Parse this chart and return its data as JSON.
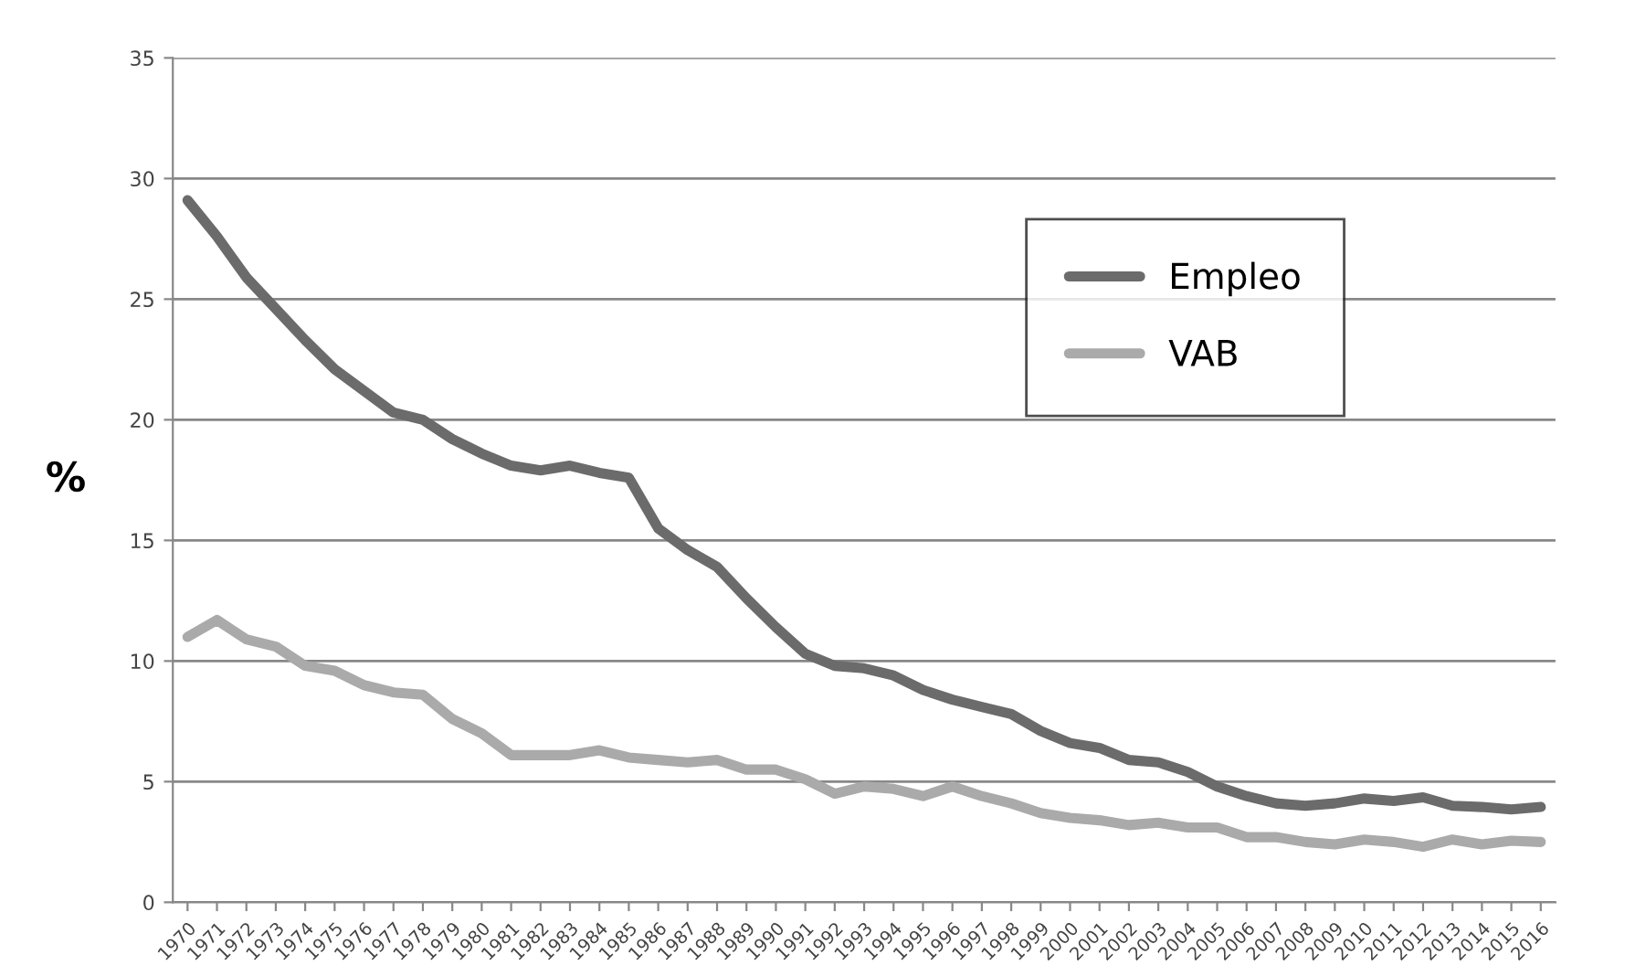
{
  "chart_data": {
    "type": "line",
    "ylabel": "%",
    "categories": [
      "1970",
      "1971",
      "1972",
      "1973",
      "1974",
      "1975",
      "1976",
      "1977",
      "1978",
      "1979",
      "1980",
      "1981",
      "1982",
      "1983",
      "1984",
      "1985",
      "1986",
      "1987",
      "1988",
      "1989",
      "1990",
      "1991",
      "1992",
      "1993",
      "1994",
      "1995",
      "1996",
      "1997",
      "1998",
      "1999",
      "2000",
      "2001",
      "2002",
      "2003",
      "2004",
      "2005",
      "2006",
      "2007",
      "2008",
      "2009",
      "2010",
      "2011",
      "2012",
      "2013",
      "2014",
      "2015",
      "2016"
    ],
    "series": [
      {
        "name": "Empleo",
        "color": "#6b6b6b",
        "values": [
          29.1,
          27.6,
          25.9,
          24.6,
          23.3,
          22.1,
          21.2,
          20.3,
          20.0,
          19.2,
          18.6,
          18.1,
          17.9,
          18.1,
          17.8,
          17.6,
          15.5,
          14.6,
          13.9,
          12.6,
          11.4,
          10.3,
          9.8,
          9.7,
          9.4,
          8.8,
          8.4,
          8.1,
          7.8,
          7.1,
          6.6,
          6.4,
          5.9,
          5.8,
          5.4,
          4.8,
          4.4,
          4.1,
          4.0,
          4.1,
          4.3,
          4.2,
          4.35,
          4.0,
          3.95,
          3.85,
          3.95
        ]
      },
      {
        "name": "VAB",
        "color": "#aaaaaa",
        "values": [
          11.0,
          11.7,
          10.9,
          10.6,
          9.8,
          9.6,
          9.0,
          8.7,
          8.6,
          7.6,
          7.0,
          6.1,
          6.1,
          6.1,
          6.3,
          6.0,
          5.9,
          5.8,
          5.9,
          5.5,
          5.5,
          5.1,
          4.5,
          4.8,
          4.7,
          4.4,
          4.8,
          4.4,
          4.1,
          3.7,
          3.5,
          3.4,
          3.2,
          3.3,
          3.1,
          3.1,
          2.7,
          2.7,
          2.5,
          2.4,
          2.6,
          2.5,
          2.3,
          2.6,
          2.4,
          2.55,
          2.5
        ]
      }
    ],
    "ylim": [
      0,
      35
    ],
    "yticks": [
      0,
      5,
      10,
      15,
      20,
      25,
      30,
      35
    ],
    "grid": "y",
    "legend": "top right",
    "marker": "none",
    "line_style": "solid"
  }
}
